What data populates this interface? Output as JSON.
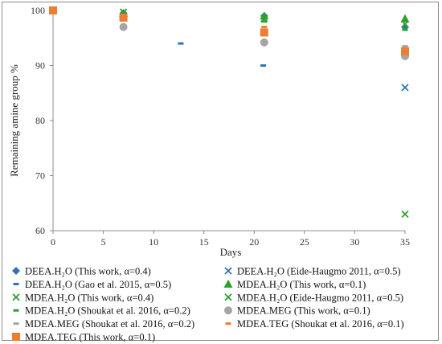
{
  "chart_data": {
    "type": "scatter",
    "title": "",
    "xlabel": "Days",
    "ylabel": "Remaining amine group %",
    "xlim": [
      0,
      35
    ],
    "ylim": [
      60,
      100
    ],
    "xticks": [
      0,
      5,
      10,
      15,
      20,
      25,
      30,
      35
    ],
    "yticks": [
      60,
      70,
      80,
      90,
      100
    ],
    "grid": false,
    "legend_position": "bottom",
    "series": [
      {
        "name": "DEEA.H₂O (This work, α=0.4)",
        "marker": "diamond",
        "color": "#2e74b5",
        "points": [
          [
            0,
            100
          ],
          [
            7,
            99.5
          ],
          [
            21,
            99
          ],
          [
            35,
            97
          ]
        ]
      },
      {
        "name": "DEEA.H₂O (Eide-Haugmo 2011, α=0.5)",
        "marker": "x",
        "color": "#2e74b5",
        "points": [
          [
            35,
            86
          ]
        ]
      },
      {
        "name": "DEEA.H₂O (Gao et al. 2015, α=0.5)",
        "marker": "dash",
        "color": "#2e74b5",
        "points": [
          [
            12.7,
            94
          ],
          [
            20.9,
            90
          ]
        ]
      },
      {
        "name": "MDEA.H₂O (This work, α=0.1)",
        "marker": "triangle",
        "color": "#2ca02c",
        "points": [
          [
            0,
            100
          ],
          [
            7,
            99.5
          ],
          [
            21,
            99
          ],
          [
            35,
            98.5
          ]
        ]
      },
      {
        "name": "MDEA.H₂O (This work, α=0.4)",
        "marker": "x",
        "color": "#2ca02c",
        "points": [
          [
            0,
            100
          ],
          [
            7,
            99.7
          ],
          [
            21,
            98.5
          ],
          [
            35,
            97.5
          ]
        ]
      },
      {
        "name": "MDEA.H₂O  (Eide-Haugmo 2011, α=0.5)",
        "marker": "x",
        "color": "#2ca02c",
        "points": [
          [
            35,
            63
          ]
        ]
      },
      {
        "name": "MDEA.H₂O (Shoukat et al. 2016, α=0.2)",
        "marker": "dash",
        "color": "#2ca02c",
        "points": [
          [
            21,
            98
          ],
          [
            35,
            96.5
          ]
        ]
      },
      {
        "name": "MDEA.MEG (This work, α=0.1)",
        "marker": "circle",
        "color": "#a5a5a5",
        "points": [
          [
            0,
            100
          ],
          [
            7,
            97
          ],
          [
            21,
            94.2
          ],
          [
            35,
            91.7
          ]
        ]
      },
      {
        "name": "MDEA.MEG (Shoukat et al. 2016, α=0.2)",
        "marker": "dash",
        "color": "#a5a5a5",
        "points": [
          [
            21,
            96.5
          ],
          [
            35,
            93.5
          ]
        ]
      },
      {
        "name": "MDEA.TEG (Shoukat et al. 2016, α=0.1)",
        "marker": "dash",
        "color": "#ed7d31",
        "points": [
          [
            21,
            97
          ],
          [
            35,
            93
          ]
        ]
      },
      {
        "name": "MDEA.TEG (This work, α=0.1)",
        "marker": "square",
        "color": "#ed7d31",
        "points": [
          [
            0,
            100
          ],
          [
            7,
            98.7
          ],
          [
            21,
            96
          ],
          [
            35,
            92.6
          ]
        ]
      }
    ]
  }
}
